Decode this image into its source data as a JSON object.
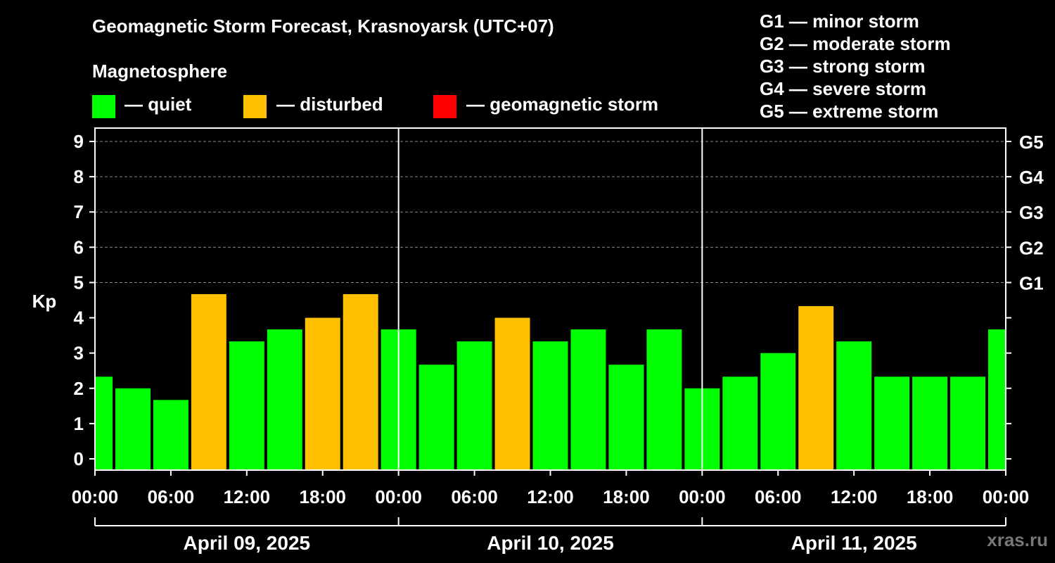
{
  "title": "Geomagnetic Storm Forecast, Krasnoyarsk (UTC+07)",
  "subtitle": "Magnetosphere",
  "legend": [
    {
      "label": "— quiet",
      "color": "#00ff00"
    },
    {
      "label": "— disturbed",
      "color": "#ffc000"
    },
    {
      "label": "— geomagnetic storm",
      "color": "#ff0000"
    }
  ],
  "g_scale": [
    "G1 — minor storm",
    "G2 — moderate storm",
    "G3 — strong storm",
    "G4 — severe storm",
    "G5 — extreme storm"
  ],
  "watermark": "xras.ru",
  "chart_data": {
    "type": "bar",
    "ylabel": "Kp",
    "ylim": [
      0,
      9
    ],
    "yticks": [
      "0",
      "1",
      "2",
      "3",
      "4",
      "5",
      "6",
      "7",
      "8",
      "9"
    ],
    "right_ticks": [
      {
        "kp": 5,
        "label": "G1"
      },
      {
        "kp": 6,
        "label": "G2"
      },
      {
        "kp": 7,
        "label": "G3"
      },
      {
        "kp": 8,
        "label": "G4"
      },
      {
        "kp": 9,
        "label": "G5"
      }
    ],
    "x_tick_labels": [
      "00:00",
      "06:00",
      "12:00",
      "18:00",
      "00:00",
      "06:00",
      "12:00",
      "18:00",
      "00:00",
      "06:00",
      "12:00",
      "18:00",
      "00:00"
    ],
    "days": [
      "April 09, 2025",
      "April 10, 2025",
      "April 11, 2025"
    ],
    "grid": true,
    "bars": [
      {
        "start_hour": 0,
        "end_hour": 1.5,
        "kp": 2.33,
        "status": "quiet"
      },
      {
        "start_hour": 1.5,
        "end_hour": 4.5,
        "kp": 2.0,
        "status": "quiet"
      },
      {
        "start_hour": 4.5,
        "end_hour": 7.5,
        "kp": 1.67,
        "status": "quiet"
      },
      {
        "start_hour": 7.5,
        "end_hour": 10.5,
        "kp": 4.67,
        "status": "disturbed"
      },
      {
        "start_hour": 10.5,
        "end_hour": 13.5,
        "kp": 3.33,
        "status": "quiet"
      },
      {
        "start_hour": 13.5,
        "end_hour": 16.5,
        "kp": 3.67,
        "status": "quiet"
      },
      {
        "start_hour": 16.5,
        "end_hour": 19.5,
        "kp": 4.0,
        "status": "disturbed"
      },
      {
        "start_hour": 19.5,
        "end_hour": 22.5,
        "kp": 4.67,
        "status": "disturbed"
      },
      {
        "start_hour": 22.5,
        "end_hour": 25.5,
        "kp": 3.67,
        "status": "quiet"
      },
      {
        "start_hour": 25.5,
        "end_hour": 28.5,
        "kp": 2.67,
        "status": "quiet"
      },
      {
        "start_hour": 28.5,
        "end_hour": 31.5,
        "kp": 3.33,
        "status": "quiet"
      },
      {
        "start_hour": 31.5,
        "end_hour": 34.5,
        "kp": 4.0,
        "status": "disturbed"
      },
      {
        "start_hour": 34.5,
        "end_hour": 37.5,
        "kp": 3.33,
        "status": "quiet"
      },
      {
        "start_hour": 37.5,
        "end_hour": 40.5,
        "kp": 3.67,
        "status": "quiet"
      },
      {
        "start_hour": 40.5,
        "end_hour": 43.5,
        "kp": 2.67,
        "status": "quiet"
      },
      {
        "start_hour": 43.5,
        "end_hour": 46.5,
        "kp": 3.67,
        "status": "quiet"
      },
      {
        "start_hour": 46.5,
        "end_hour": 49.5,
        "kp": 2.0,
        "status": "quiet"
      },
      {
        "start_hour": 49.5,
        "end_hour": 52.5,
        "kp": 2.33,
        "status": "quiet"
      },
      {
        "start_hour": 52.5,
        "end_hour": 55.5,
        "kp": 3.0,
        "status": "quiet"
      },
      {
        "start_hour": 55.5,
        "end_hour": 58.5,
        "kp": 4.33,
        "status": "disturbed"
      },
      {
        "start_hour": 58.5,
        "end_hour": 61.5,
        "kp": 3.33,
        "status": "quiet"
      },
      {
        "start_hour": 61.5,
        "end_hour": 64.5,
        "kp": 2.33,
        "status": "quiet"
      },
      {
        "start_hour": 64.5,
        "end_hour": 67.5,
        "kp": 2.33,
        "status": "quiet"
      },
      {
        "start_hour": 67.5,
        "end_hour": 70.5,
        "kp": 2.33,
        "status": "quiet"
      },
      {
        "start_hour": 70.5,
        "end_hour": 72,
        "kp": 3.67,
        "status": "quiet"
      }
    ]
  }
}
